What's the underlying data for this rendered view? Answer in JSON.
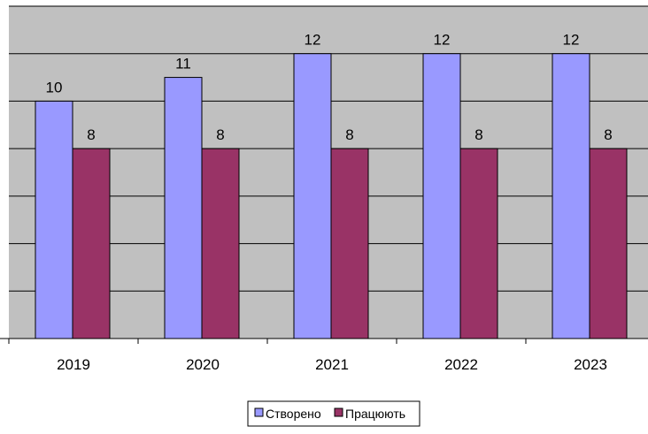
{
  "chart_data": {
    "type": "bar",
    "categories": [
      "2019",
      "2020",
      "2021",
      "2022",
      "2023"
    ],
    "series": [
      {
        "name": "Створено",
        "values": [
          10,
          11,
          12,
          12,
          12
        ],
        "color": "#9999FF"
      },
      {
        "name": "Працюють",
        "values": [
          8,
          8,
          8,
          8,
          8
        ],
        "color": "#993366"
      }
    ],
    "title": "",
    "xlabel": "",
    "ylabel": "",
    "ylim": [
      0,
      14
    ],
    "grid": true,
    "legend_position": "bottom",
    "plot_background": "#C0C0C0",
    "gridline_color": "#000000",
    "axis_tick_labels_visible": false
  }
}
